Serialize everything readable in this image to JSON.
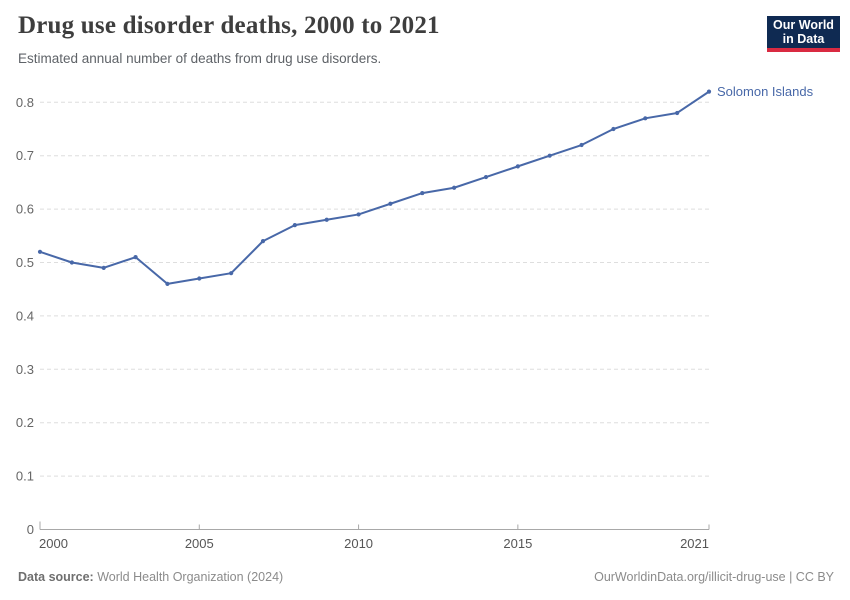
{
  "header": {
    "title": "Drug use disorder deaths, 2000 to 2021",
    "subtitle": "Estimated annual number of deaths from drug use disorders.",
    "logo": {
      "line1": "Our World",
      "line2": "in Data"
    }
  },
  "footer": {
    "datasource_label": "Data source:",
    "datasource_value": "World Health Organization (2024)",
    "credit": "OurWorldinData.org/illicit-drug-use | CC BY"
  },
  "colors": {
    "series": "#4868A8",
    "grid": "#DEDEDE",
    "axis": "#A8A8A8",
    "ytick_text": "#666666",
    "xtick_text": "#565656",
    "logo_bg": "#0F2A52",
    "logo_red": "#D92A41"
  },
  "chart_data": {
    "type": "line",
    "title": "Drug use disorder deaths, 2000 to 2021",
    "subtitle": "Estimated annual number of deaths from drug use disorders.",
    "series": [
      {
        "name": "Solomon Islands",
        "years": [
          2000,
          2001,
          2002,
          2003,
          2004,
          2005,
          2006,
          2007,
          2008,
          2009,
          2010,
          2011,
          2012,
          2013,
          2014,
          2015,
          2016,
          2017,
          2018,
          2019,
          2020,
          2021
        ],
        "values": [
          0.52,
          0.5,
          0.49,
          0.51,
          0.46,
          0.47,
          0.48,
          0.54,
          0.57,
          0.58,
          0.59,
          0.61,
          0.63,
          0.64,
          0.66,
          0.68,
          0.7,
          0.72,
          0.75,
          0.77,
          0.78,
          0.82
        ]
      }
    ],
    "xlabel": "",
    "ylabel": "",
    "xlim": [
      2000,
      2021
    ],
    "ylim": [
      0,
      0.8
    ],
    "yticks": [
      0,
      0.1,
      0.2,
      0.3,
      0.4,
      0.5,
      0.6,
      0.7,
      0.8
    ],
    "xticks": [
      2000,
      2005,
      2010,
      2015,
      2021
    ],
    "grid": "dashed-horizontal",
    "legend_position": "end-of-line-label"
  }
}
